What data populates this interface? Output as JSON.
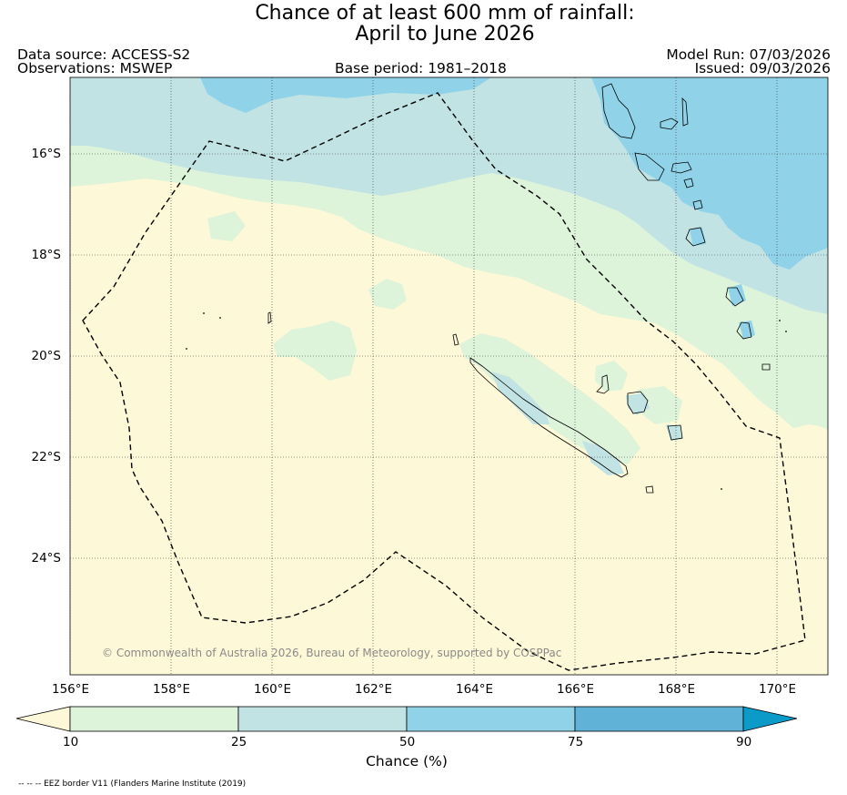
{
  "title": {
    "line1": "Chance of at least 600 mm of rainfall:",
    "line2": "April to June 2026"
  },
  "header": {
    "data_source": "Data source: ACCESS-S2",
    "observations": "Observations: MSWEP",
    "base_period": "Base period: 1981–2018",
    "model_run": "Model Run: 07/03/2026",
    "issued": "Issued: 09/03/2026"
  },
  "axes": {
    "lat_labels": [
      "16°S",
      "18°S",
      "20°S",
      "22°S",
      "24°S"
    ],
    "lon_labels": [
      "156°E",
      "158°E",
      "160°E",
      "162°E",
      "164°E",
      "166°E",
      "168°E",
      "170°E"
    ]
  },
  "copyright": "© Commonwealth of Australia 2026, Bureau of Meteorology, supported by COSPPac",
  "legend": {
    "title": "Chance (%)",
    "ticks": [
      "10",
      "25",
      "50",
      "75",
      "90"
    ],
    "colors": {
      "below_10": "#fdf8d7",
      "10_25": "#ddf3da",
      "25_50": "#c2e3e3",
      "50_75": "#90d3e9",
      "75_90": "#60b3d6",
      "above_90": "#0c9bc9"
    }
  },
  "footnote": "-- -- -- EEZ border V11 (Flanders Marine Institute (2019)"
}
